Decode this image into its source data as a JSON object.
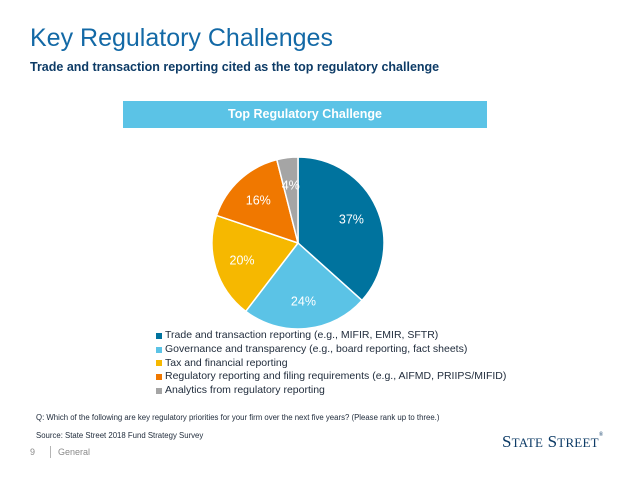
{
  "header": {
    "title": "Key Regulatory Challenges",
    "subtitle": "Trade and transaction reporting cited as the top regulatory challenge"
  },
  "chart_data": {
    "type": "pie",
    "title": "Top Regulatory Challenge",
    "slices": [
      {
        "label": "Trade and transaction reporting (e.g., MIFIR, EMIR, SFTR)",
        "value": 37,
        "value_label": "37%",
        "color": "#00739e"
      },
      {
        "label": "Governance and transparency (e.g., board reporting, fact sheets)",
        "value": 24,
        "value_label": "24%",
        "color": "#5bc3e6"
      },
      {
        "label": "Tax and financial reporting",
        "value": 20,
        "value_label": "20%",
        "color": "#f6b800"
      },
      {
        "label": "Regulatory reporting and filing requirements (e.g., AIFMD, PRIIPS/MIFID)",
        "value": 16,
        "value_label": "16%",
        "color": "#f07800"
      },
      {
        "label": "Analytics from regulatory reporting",
        "value": 4,
        "value_label": "4%",
        "color": "#a5a5a5"
      }
    ],
    "legend_position": "bottom"
  },
  "footnotes": {
    "question": "Q: Which of the following are key regulatory priorities for your firm over the next five years? (Please rank up to three.)",
    "source": "Source: State Street 2018 Fund Strategy Survey"
  },
  "footer": {
    "page_number": "9",
    "classification": "General",
    "logo_text": "State Street"
  }
}
